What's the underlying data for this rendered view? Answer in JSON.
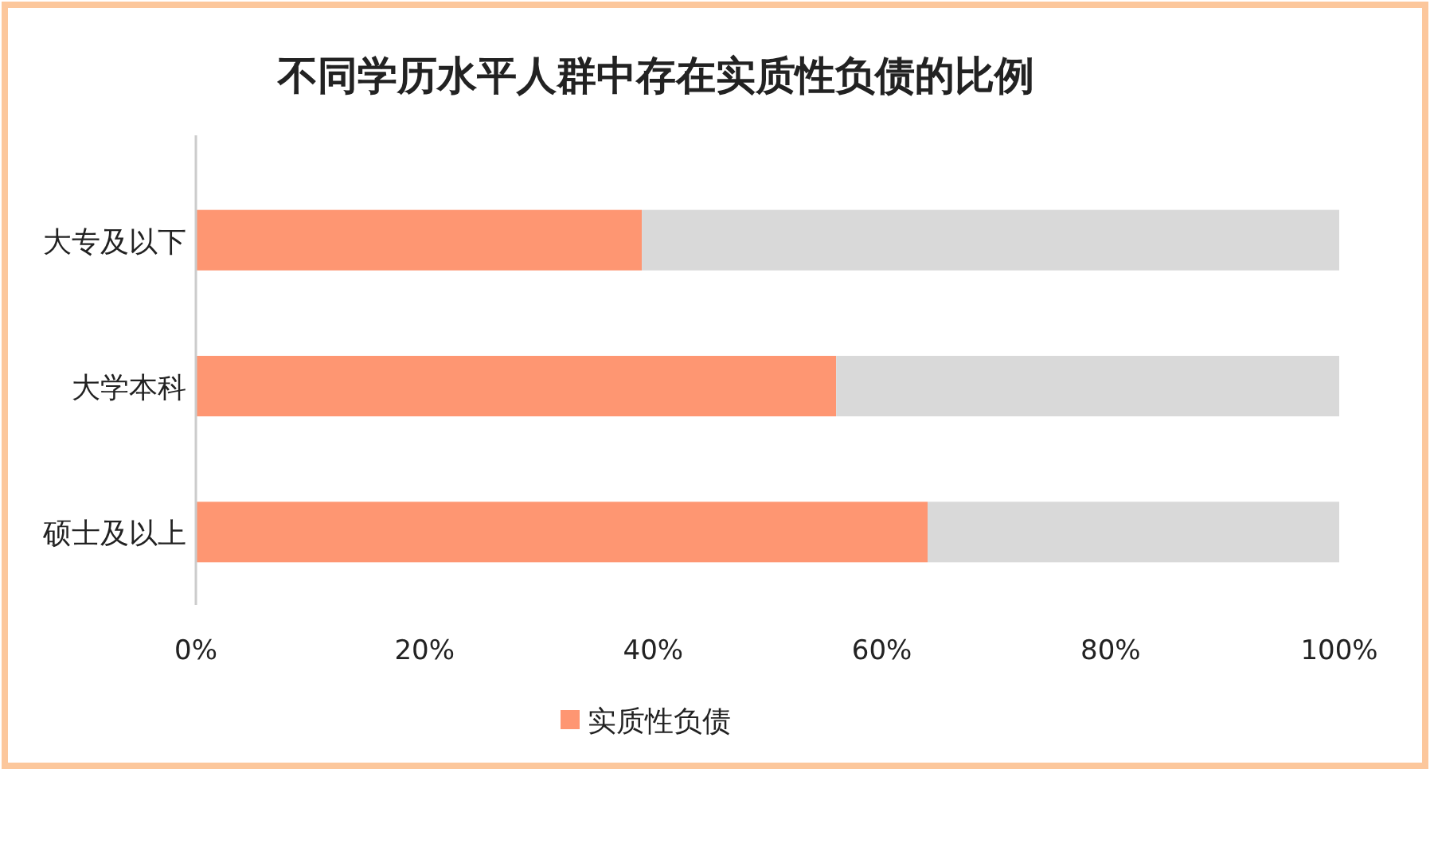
{
  "chart_data": {
    "type": "bar",
    "title": "不同学历水平人群中存在实质性负债的比例",
    "orientation": "horizontal",
    "stacked": true,
    "legend": "bottom",
    "categories": [
      "大专及以下",
      "大学本科",
      "硕士及以上"
    ],
    "series": [
      {
        "name": "实质性负债",
        "color": "#fe9672",
        "values": [
          39,
          56,
          64
        ]
      },
      {
        "color": "#d9d9d9",
        "values": [
          61,
          44,
          36
        ]
      }
    ],
    "xlim": [
      0,
      100
    ],
    "xticks": [
      {
        "value": 0,
        "label": "0%"
      },
      {
        "value": 20,
        "label": "20%"
      },
      {
        "value": 40,
        "label": "40%"
      },
      {
        "value": 60,
        "label": "60%"
      },
      {
        "value": 80,
        "label": "80%"
      },
      {
        "value": 100,
        "label": "100%"
      }
    ]
  }
}
